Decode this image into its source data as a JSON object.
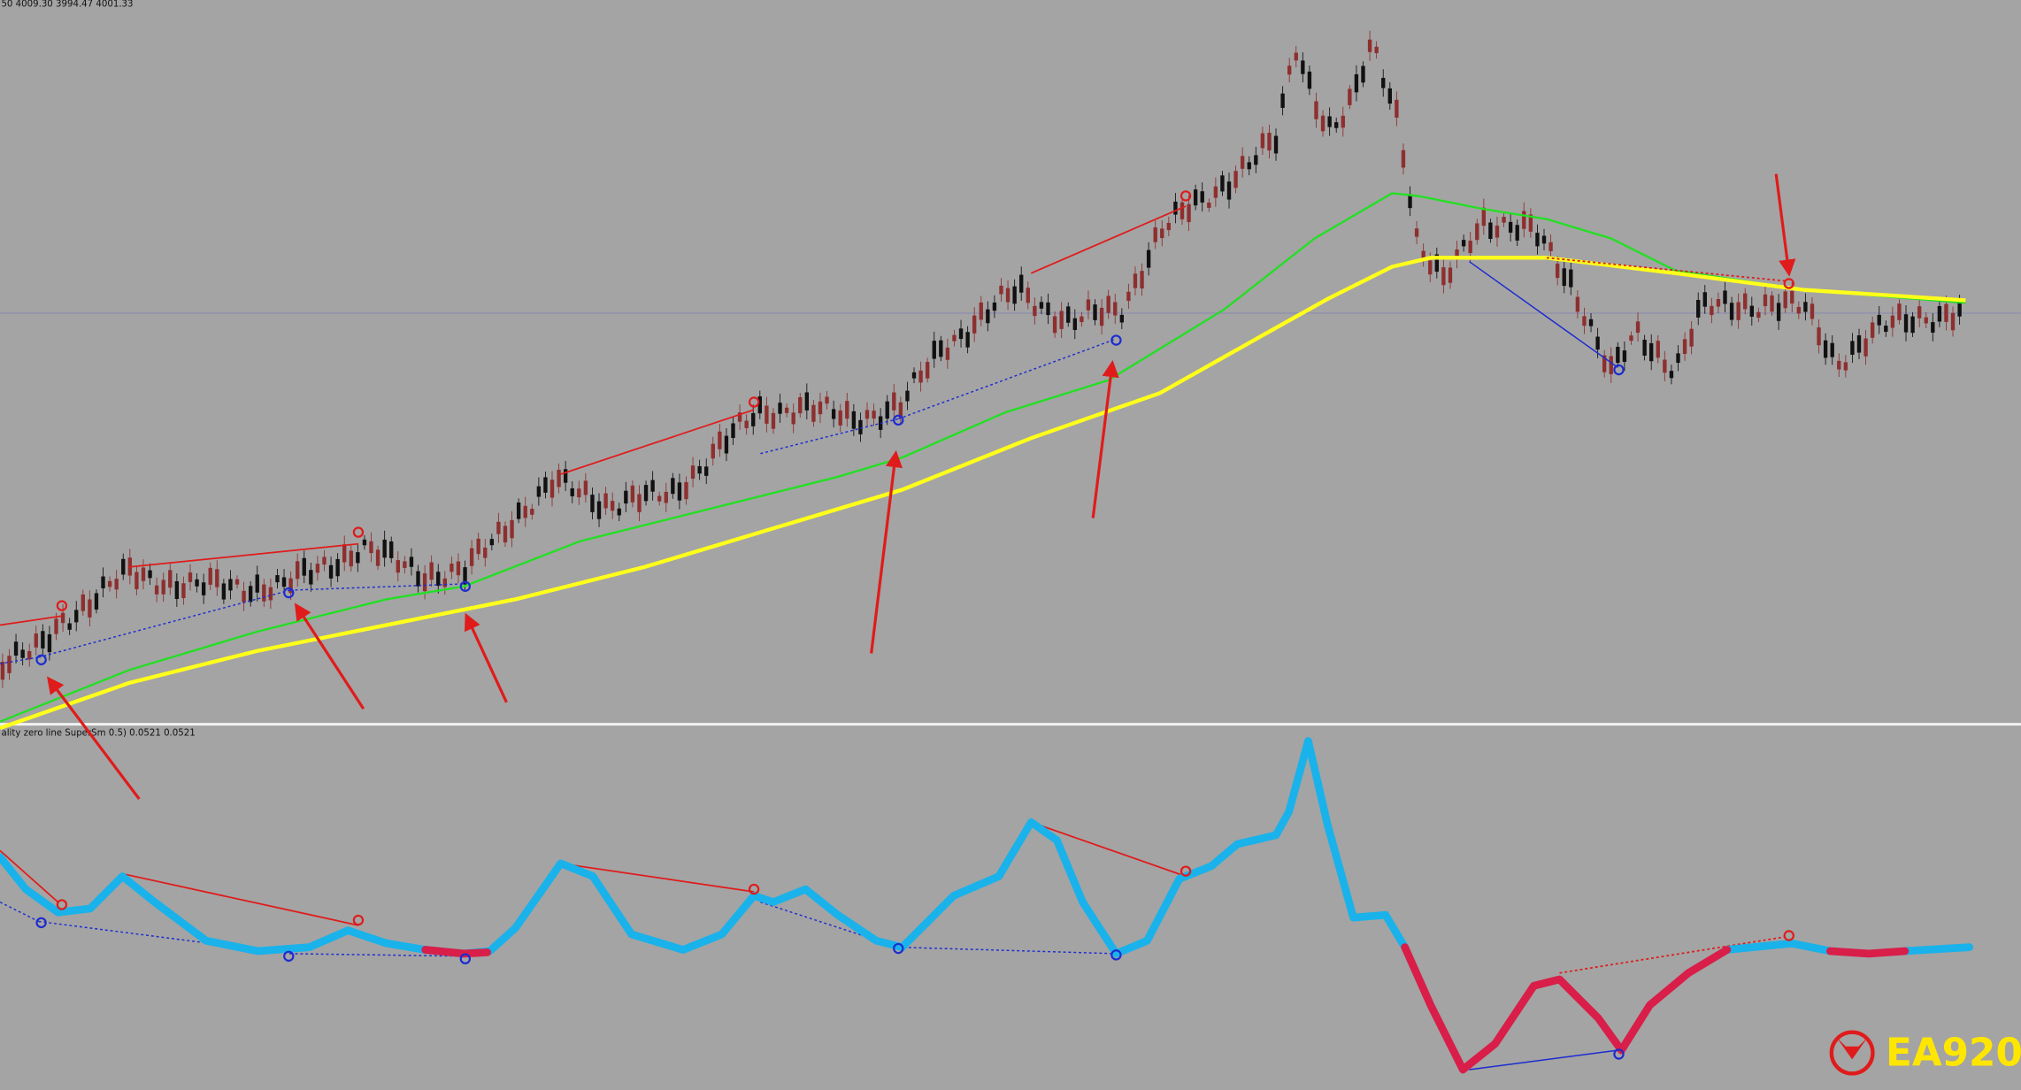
{
  "header": {
    "price_info": "50 4009.30 3994.47 4001.33",
    "indicator_label": "ality zero line SuperSm 0.5) 0.0521 0.0521"
  },
  "logo": "EA920"
}
